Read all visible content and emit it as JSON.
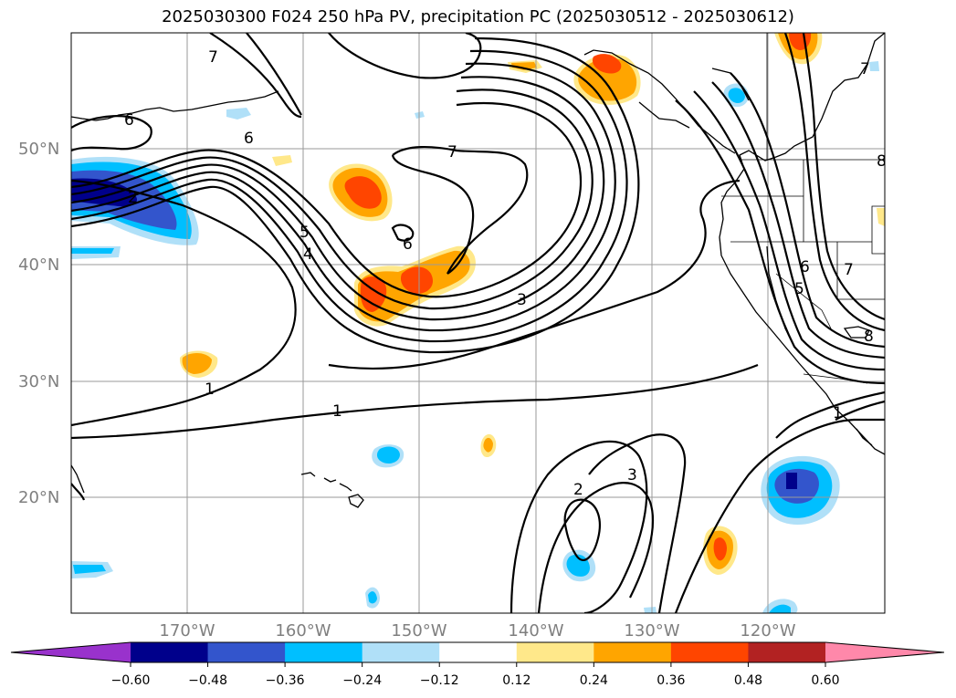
{
  "title": "2025030300 F024 250 hPa PV, precipitation PC (2025030512 - 2025030612)",
  "lat_labels": [
    "50°N",
    "40°N",
    "30°N",
    "20°N"
  ],
  "lon_labels": [
    "170°W",
    "160°W",
    "150°W",
    "140°W",
    "130°W",
    "120°W"
  ],
  "contour_labels": [
    "1",
    "1",
    "1",
    "2",
    "2",
    "3",
    "3",
    "4",
    "5",
    "5",
    "6",
    "6",
    "6",
    "6",
    "7",
    "7",
    "7",
    "7",
    "8",
    "8"
  ],
  "colorbar": {
    "ticks": [
      "−0.60",
      "−0.48",
      "−0.36",
      "−0.24",
      "−0.12",
      "0.12",
      "0.24",
      "0.36",
      "0.48",
      "0.60"
    ],
    "colors": [
      "#9932cc",
      "#00008b",
      "#3355cc",
      "#00bfff",
      "#b0e0f8",
      "#ffffff",
      "#ffe88a",
      "#ffa500",
      "#ff4500",
      "#b22222",
      "#ff88aa"
    ]
  }
}
